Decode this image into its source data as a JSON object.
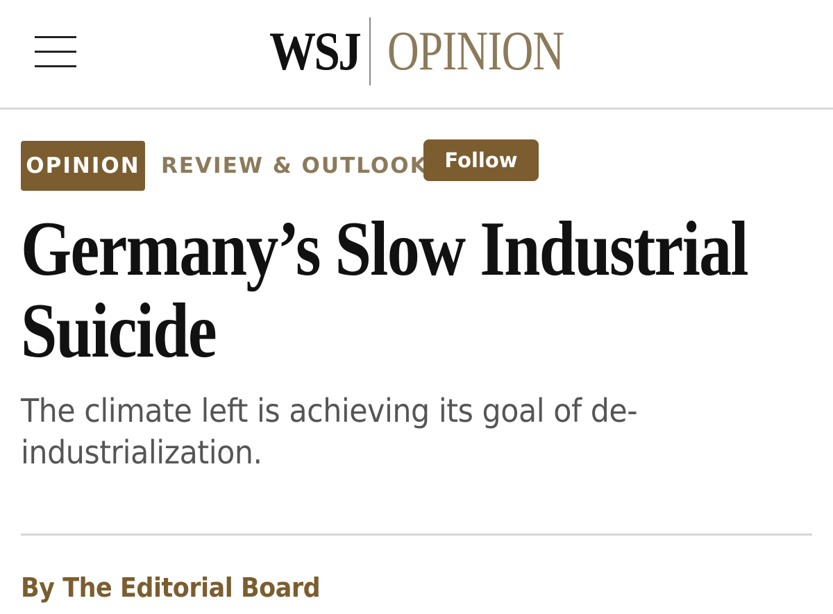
{
  "header": {
    "menu_icon": "hamburger-menu-icon",
    "brand": "WSJ",
    "section": "OPINION",
    "brand_color": "#111111",
    "section_color": "#8c7a5b"
  },
  "article": {
    "category_badge": "OPINION",
    "column": "REVIEW & OUTLOOK",
    "follow_label": "Follow",
    "accent_color": "#7b5d2f",
    "headline": "Germany’s Slow Industrial Suicide",
    "subheadline": "The climate left is achieving its goal of de-industrialization.",
    "byline": "By The Editorial Board"
  }
}
